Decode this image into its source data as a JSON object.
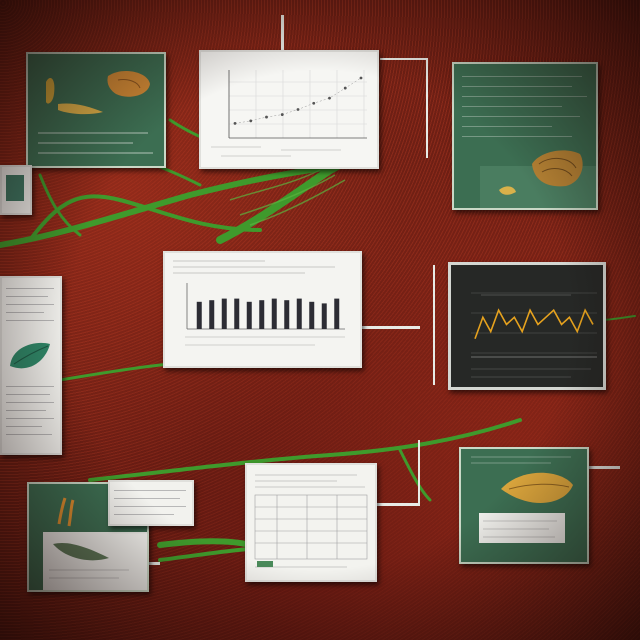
{
  "panels": {
    "top_left": {
      "color": "#3c6e52"
    },
    "top_center_chart": {
      "chart_type": "scatter-line"
    },
    "top_right": {
      "color": "#3c6e52"
    },
    "mid_left": {
      "color": "#f2f2ee"
    },
    "mid_center_chart": {
      "chart_type": "bar"
    },
    "mid_right_chart": {
      "chart_type": "line",
      "line_color": "#e6a21e"
    },
    "bottom_left": {
      "color": "#3c6e52"
    },
    "bottom_center": {
      "color": "#f2f2ee"
    },
    "bottom_right": {
      "color": "#3c6e52"
    }
  },
  "palette": {
    "background": "#7a2416",
    "vine": "#3f9a2c",
    "panel_green": "#3c6e52",
    "panel_white": "#f2f2ee"
  },
  "chart_data": [
    {
      "type": "scatter",
      "x": [
        1,
        2,
        3,
        4,
        5,
        6,
        7,
        8,
        9
      ],
      "y": [
        1,
        1.2,
        1.5,
        1.7,
        2.1,
        2.6,
        3.0,
        3.8,
        4.6
      ]
    },
    {
      "type": "bar",
      "categories": [
        "1",
        "2",
        "3",
        "4",
        "5",
        "6",
        "7",
        "8",
        "9",
        "10",
        "11",
        "12"
      ],
      "values": [
        0.85,
        0.9,
        0.95,
        0.95,
        0.85,
        0.9,
        0.95,
        0.9,
        0.95,
        0.85,
        0.8,
        0.95
      ]
    },
    {
      "type": "line",
      "x": [
        1,
        2,
        3,
        4,
        5,
        6,
        7,
        8,
        9,
        10,
        11,
        12,
        13,
        14,
        15,
        16
      ],
      "y": [
        2,
        5,
        3,
        6,
        4,
        5,
        3,
        6,
        4,
        5,
        6,
        4,
        5,
        3,
        6,
        4
      ]
    }
  ]
}
